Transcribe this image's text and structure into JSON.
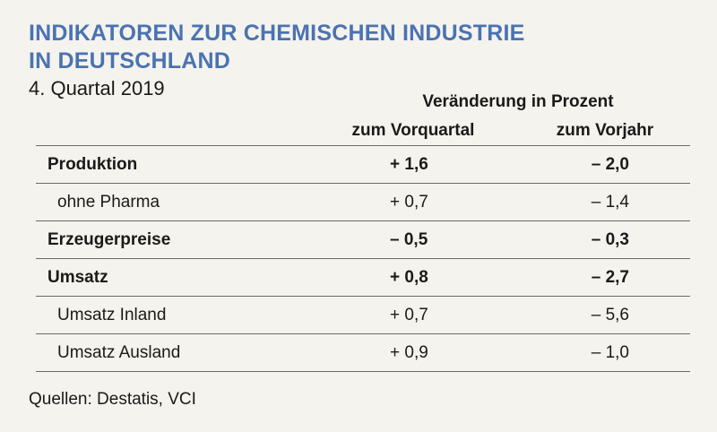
{
  "header": {
    "title_line1": "INDIKATOREN ZUR CHEMISCHEN INDUSTRIE",
    "title_line2": "IN DEUTSCHLAND",
    "subtitle": "4. Quartal 2019"
  },
  "table": {
    "group_header": "Veränderung in Prozent",
    "columns": [
      "zum Vorquartal",
      "zum Vorjahr"
    ],
    "rows": [
      {
        "label": "Produktion",
        "vorquartal": "+ 1,6",
        "vorjahr": "– 2,0",
        "bold": true
      },
      {
        "label": "ohne Pharma",
        "vorquartal": "+ 0,7",
        "vorjahr": "– 1,4",
        "bold": false
      },
      {
        "label": "Erzeugerpreise",
        "vorquartal": "– 0,5",
        "vorjahr": "– 0,3",
        "bold": true
      },
      {
        "label": "Umsatz",
        "vorquartal": "+ 0,8",
        "vorjahr": "– 2,7",
        "bold": true
      },
      {
        "label": "Umsatz Inland",
        "vorquartal": "+ 0,7",
        "vorjahr": "– 5,6",
        "bold": false
      },
      {
        "label": "Umsatz Ausland",
        "vorquartal": "+ 0,9",
        "vorjahr": "– 1,0",
        "bold": false
      }
    ]
  },
  "footer": {
    "source": "Quellen: Destatis, VCI"
  },
  "colors": {
    "title": "#4a73b2",
    "background": "#f5f3ee",
    "text": "#1a1a1a"
  }
}
